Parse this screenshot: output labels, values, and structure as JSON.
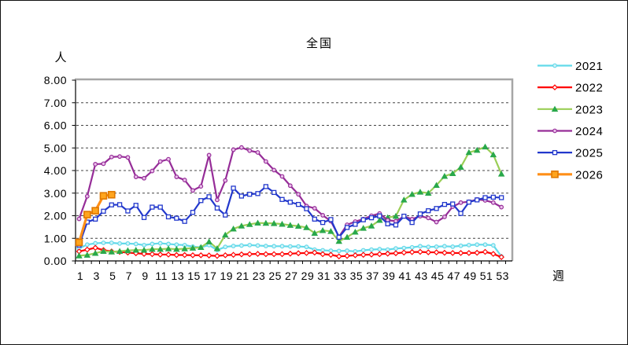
{
  "frame": {
    "background": "#ffffff",
    "outer_border_color": "#111111",
    "plot_frame_grey": "#a6a6a6",
    "axis_color": "#000000",
    "gridline_color": "#444444"
  },
  "chart_data": {
    "type": "line",
    "title": "全国",
    "y_axis_unit": "人",
    "x_axis_unit": "週",
    "ylim": [
      0,
      8
    ],
    "y_tick_step": 1,
    "y_tick_labels": [
      "0.00",
      "1.00",
      "2.00",
      "3.00",
      "4.00",
      "5.00",
      "6.00",
      "7.00",
      "8.00"
    ],
    "weeks": 53,
    "x_label_ticks": [
      1,
      3,
      5,
      7,
      9,
      11,
      13,
      15,
      17,
      19,
      21,
      23,
      25,
      27,
      29,
      31,
      33,
      35,
      37,
      39,
      41,
      43,
      45,
      47,
      49,
      51,
      53
    ],
    "grid": "horizontal-dashed",
    "legend_position": "right",
    "series": [
      {
        "name": "2021",
        "color": "#62D9E9",
        "marker": "circle",
        "marker_fill": "#CFF2F8",
        "values": [
          0.55,
          0.72,
          0.78,
          0.8,
          0.8,
          0.77,
          0.77,
          0.75,
          0.7,
          0.75,
          0.78,
          0.75,
          0.72,
          0.7,
          0.63,
          0.6,
          0.7,
          0.48,
          0.62,
          0.66,
          0.68,
          0.7,
          0.68,
          0.66,
          0.65,
          0.65,
          0.64,
          0.64,
          0.62,
          0.5,
          0.47,
          0.45,
          0.44,
          0.45,
          0.42,
          0.47,
          0.5,
          0.52,
          0.5,
          0.55,
          0.57,
          0.6,
          0.65,
          0.62,
          0.63,
          0.65,
          0.63,
          0.67,
          0.7,
          0.72,
          0.72,
          0.69,
          0.2
        ]
      },
      {
        "name": "2022",
        "color": "#FF0000",
        "marker": "diamond",
        "marker_fill": "#ffffff",
        "values": [
          0.42,
          0.5,
          0.58,
          0.48,
          0.42,
          0.4,
          0.37,
          0.34,
          0.31,
          0.3,
          0.28,
          0.28,
          0.26,
          0.26,
          0.25,
          0.25,
          0.24,
          0.22,
          0.25,
          0.27,
          0.29,
          0.3,
          0.31,
          0.3,
          0.3,
          0.3,
          0.32,
          0.34,
          0.35,
          0.37,
          0.3,
          0.27,
          0.2,
          0.22,
          0.25,
          0.27,
          0.28,
          0.3,
          0.32,
          0.34,
          0.37,
          0.39,
          0.4,
          0.38,
          0.38,
          0.36,
          0.35,
          0.35,
          0.35,
          0.36,
          0.4,
          0.31,
          0.17
        ]
      },
      {
        "name": "2023",
        "color": "#9ACE56",
        "marker": "triangle",
        "marker_fill": "#29A84B",
        "values": [
          0.23,
          0.26,
          0.34,
          0.43,
          0.4,
          0.43,
          0.46,
          0.48,
          0.48,
          0.52,
          0.52,
          0.54,
          0.52,
          0.54,
          0.57,
          0.6,
          0.85,
          0.55,
          1.15,
          1.42,
          1.55,
          1.62,
          1.68,
          1.67,
          1.66,
          1.63,
          1.58,
          1.54,
          1.48,
          1.23,
          1.35,
          1.31,
          0.87,
          1.05,
          1.28,
          1.45,
          1.55,
          1.8,
          1.92,
          1.98,
          2.7,
          2.95,
          3.05,
          3.0,
          3.35,
          3.75,
          3.87,
          4.15,
          4.8,
          4.9,
          5.05,
          4.7,
          3.85
        ]
      },
      {
        "name": "2024",
        "color": "#962D98",
        "marker": "circle",
        "marker_fill": "#EBC0EB",
        "values": [
          1.86,
          2.86,
          4.28,
          4.3,
          4.6,
          4.62,
          4.58,
          3.72,
          3.66,
          3.98,
          4.4,
          4.5,
          3.72,
          3.58,
          3.12,
          3.3,
          4.68,
          2.7,
          3.56,
          4.92,
          5.02,
          4.88,
          4.8,
          4.4,
          4.02,
          3.74,
          3.33,
          2.95,
          2.43,
          2.33,
          2.02,
          1.76,
          1.07,
          1.6,
          1.74,
          1.85,
          2.0,
          2.1,
          1.8,
          1.76,
          1.97,
          1.85,
          1.98,
          1.9,
          1.72,
          1.95,
          2.4,
          2.58,
          2.62,
          2.72,
          2.68,
          2.58,
          2.38
        ]
      },
      {
        "name": "2025",
        "color": "#2238CC",
        "marker": "square",
        "marker_fill": "#ffffff",
        "values": [
          0.7,
          1.72,
          1.85,
          2.2,
          2.48,
          2.49,
          2.21,
          2.46,
          1.92,
          2.38,
          2.38,
          1.95,
          1.89,
          1.75,
          2.15,
          2.67,
          2.84,
          2.34,
          2.03,
          3.22,
          2.87,
          2.95,
          2.98,
          3.29,
          3.03,
          2.72,
          2.6,
          2.5,
          2.31,
          1.85,
          1.7,
          1.83,
          1.05,
          1.48,
          1.62,
          1.82,
          1.91,
          1.99,
          1.64,
          1.59,
          1.98,
          1.7,
          2.08,
          2.22,
          2.32,
          2.5,
          2.52,
          2.1,
          2.6,
          2.7,
          2.8,
          2.82,
          2.8
        ]
      },
      {
        "name": "2026",
        "color": "#FF8F17",
        "marker": "square-big",
        "marker_fill": "#FFA51E",
        "marker_border": "#E07800",
        "line_width": 3.2,
        "values": [
          0.82,
          2.05,
          2.22,
          2.88,
          2.93
        ]
      }
    ]
  }
}
